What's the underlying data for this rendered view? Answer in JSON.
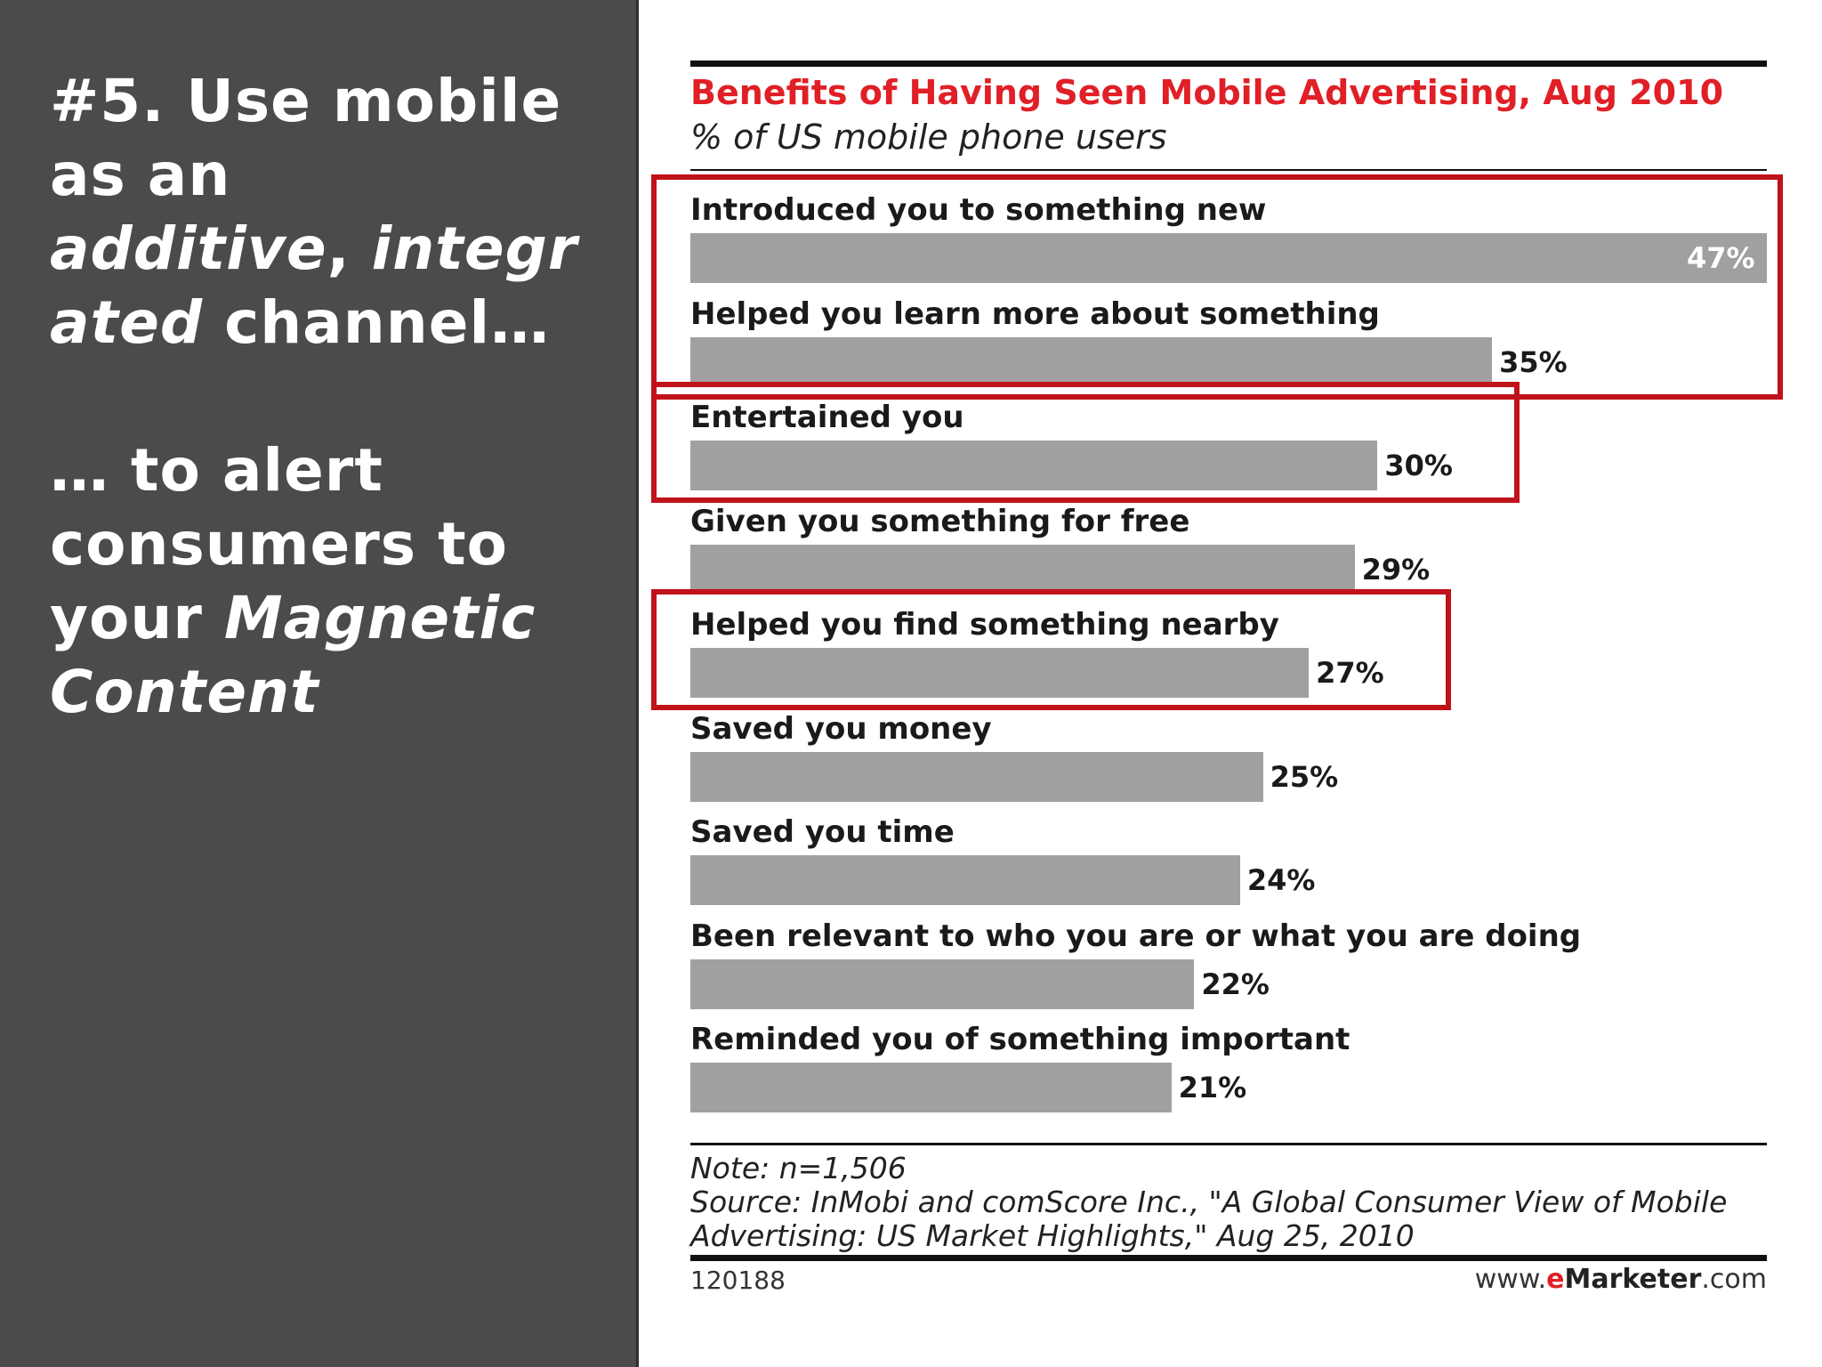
{
  "slide": {
    "headline": {
      "line1": "#5. Use mobile",
      "line2": "as an",
      "line3_italic": "additive",
      "line3_sep": ", ",
      "line3_italic2": "integr",
      "line4_italic": "ated",
      "line4_rest": " channel…",
      "line5": "… to alert",
      "line6": "consumers to",
      "line7_plain": "your ",
      "line7_italic": "Magnetic",
      "line8_italic": "Content"
    }
  },
  "chart_data": {
    "type": "bar",
    "orientation": "horizontal",
    "title": "Benefits of Having Seen Mobile Advertising, Aug 2010",
    "subtitle": "% of US mobile phone users",
    "categories": [
      "Introduced you to something new",
      "Helped you learn more about something",
      "Entertained you",
      "Given you something for free",
      "Helped you find something nearby",
      "Saved you money",
      "Saved you time",
      "Been relevant to who you are or what you are doing",
      "Reminded you of something important"
    ],
    "values": [
      47,
      35,
      30,
      29,
      27,
      25,
      24,
      22,
      21
    ],
    "value_labels": [
      "47%",
      "35%",
      "30%",
      "29%",
      "27%",
      "25%",
      "24%",
      "22%",
      "21%"
    ],
    "xlim": [
      0,
      47
    ],
    "highlighted_categories": [
      "Introduced you to something new",
      "Helped you learn more about something",
      "Entertained you",
      "Helped you find something nearby"
    ],
    "note": "Note: n=1,506",
    "source_line1": "Source: InMobi and comScore Inc., \"A Global Consumer View of Mobile",
    "source_line2": "Advertising: US Market Highlights,\" Aug 25, 2010",
    "chart_id": "120188",
    "brand_prefix": "www.",
    "brand_e": "e",
    "brand_name": "Marketer",
    "brand_suffix": ".com",
    "colors": {
      "bar": "#a0a0a0",
      "title": "#e01f26",
      "highlight": "#c0121a"
    }
  }
}
